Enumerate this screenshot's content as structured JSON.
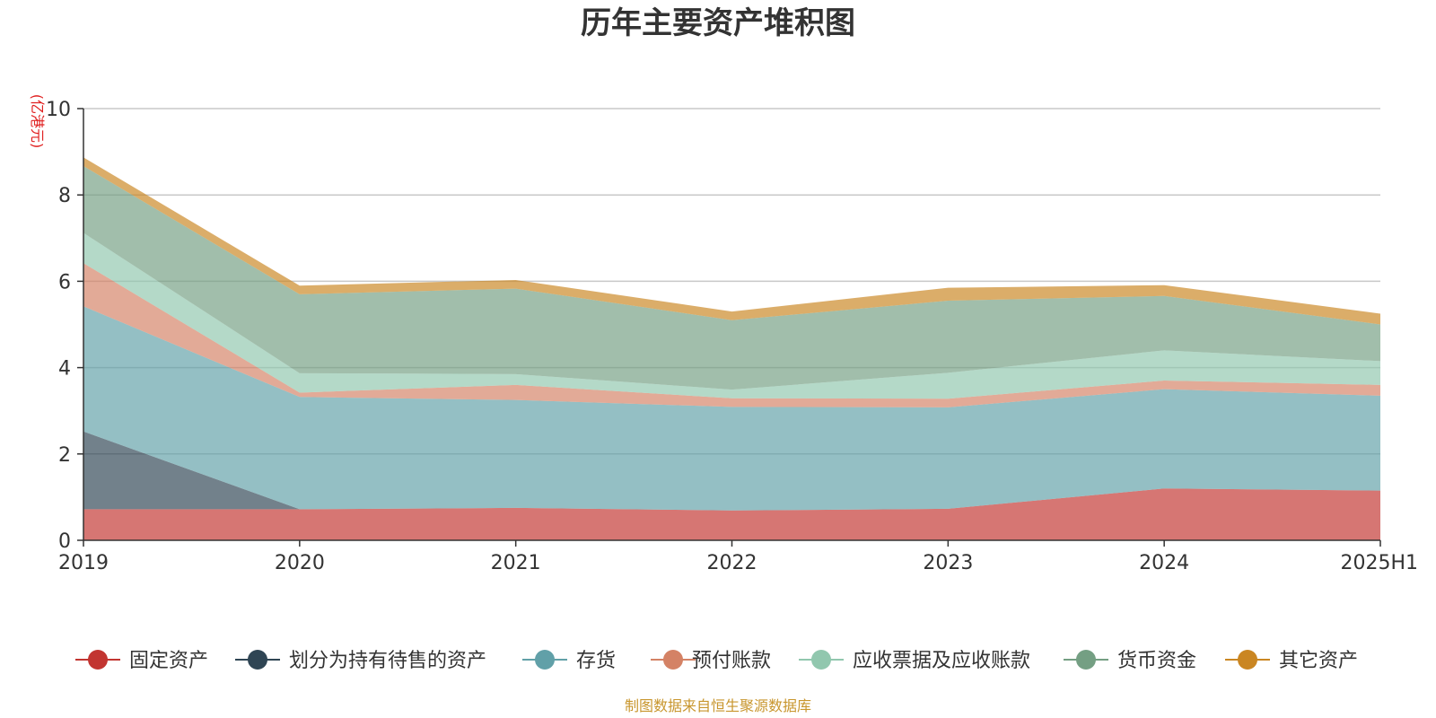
{
  "chart_data": {
    "type": "area",
    "stacked": true,
    "title": "历年主要资产堆积图",
    "unit": "(亿港元)",
    "categories": [
      "2019",
      "2020",
      "2021",
      "2022",
      "2023",
      "2024",
      "2025H1"
    ],
    "ylim": [
      0,
      10
    ],
    "yticks": [
      0,
      2,
      4,
      6,
      8,
      10
    ],
    "grid": true,
    "legend_position": "bottom",
    "series": [
      {
        "name": "固定资产",
        "color": "#c23531",
        "values": [
          0.72,
          0.72,
          0.75,
          0.69,
          0.73,
          1.2,
          1.15
        ]
      },
      {
        "name": "划分为持有待售的资产",
        "color": "#2f4554",
        "values": [
          1.8,
          0.0,
          0.0,
          0.0,
          0.0,
          0.0,
          0.0
        ]
      },
      {
        "name": "存货",
        "color": "#61a0a8",
        "values": [
          2.9,
          2.6,
          2.5,
          2.4,
          2.35,
          2.3,
          2.2
        ]
      },
      {
        "name": "预付账款",
        "color": "#d48265",
        "values": [
          1.0,
          0.1,
          0.35,
          0.2,
          0.2,
          0.2,
          0.25
        ]
      },
      {
        "name": "应收票据及应收账款",
        "color": "#91c7ae",
        "values": [
          0.7,
          0.45,
          0.25,
          0.2,
          0.6,
          0.7,
          0.55
        ]
      },
      {
        "name": "货币资金",
        "color": "#749f83",
        "values": [
          1.55,
          1.83,
          1.98,
          1.61,
          1.67,
          1.26,
          0.85
        ]
      },
      {
        "name": "其它资产",
        "color": "#ca8622",
        "values": [
          0.2,
          0.2,
          0.2,
          0.2,
          0.3,
          0.25,
          0.25
        ]
      }
    ]
  },
  "source_text": "制图数据来自恒生聚源数据库"
}
